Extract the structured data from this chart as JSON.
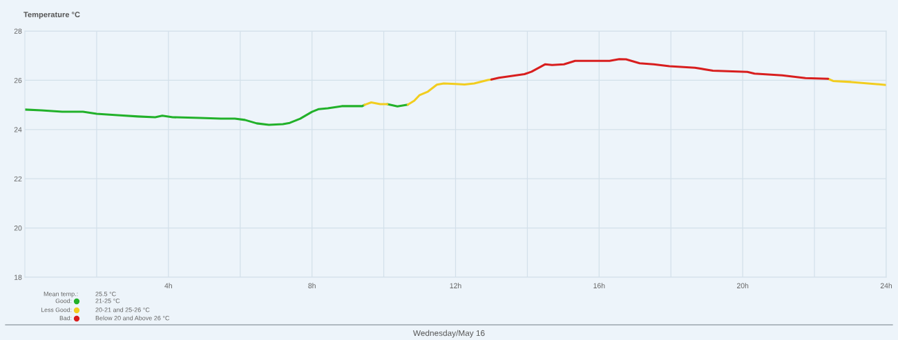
{
  "chart_data": {
    "type": "line",
    "title": "Temperature °C",
    "xlim": [
      0,
      24
    ],
    "ylim": [
      18,
      28
    ],
    "yticks": [
      18,
      20,
      22,
      24,
      26,
      28
    ],
    "xticks": [
      {
        "value": 2,
        "label": null
      },
      {
        "value": 4,
        "label": "4h"
      },
      {
        "value": 6,
        "label": null
      },
      {
        "value": 8,
        "label": "8h"
      },
      {
        "value": 10,
        "label": null
      },
      {
        "value": 12,
        "label": "12h"
      },
      {
        "value": 14,
        "label": null
      },
      {
        "value": 16,
        "label": "16h"
      },
      {
        "value": 18,
        "label": null
      },
      {
        "value": 20,
        "label": "20h"
      },
      {
        "value": 22,
        "label": null
      },
      {
        "value": 24,
        "label": "24h"
      }
    ],
    "grid": true,
    "legend": "bottom left",
    "marker": "none",
    "line_style": "solid",
    "annotations": [
      "Mean temp.:",
      "25.5 °C",
      "21-25 °C",
      "20-21 and 25-26 °C",
      "Below 20 and Above 26 °C",
      "Wednesday/May 16"
    ],
    "series": [
      {
        "name": "Good:",
        "color": "#22b12a",
        "x": [
          0,
          0.46,
          1.04,
          1.62,
          2.0,
          2.58,
          3.15,
          3.63,
          3.83,
          4.12,
          4.88,
          5.46,
          5.85,
          6.13,
          6.46,
          6.8,
          7.19,
          7.38,
          7.67,
          8.0,
          8.19,
          8.44,
          8.83,
          9.4,
          9.46,
          9.8,
          10.1,
          10.38,
          10.67
        ],
        "values": [
          24.81,
          24.78,
          24.72,
          24.72,
          24.64,
          24.58,
          24.53,
          24.5,
          24.56,
          24.5,
          24.47,
          24.44,
          24.44,
          24.39,
          24.25,
          24.19,
          24.22,
          24.27,
          24.44,
          24.72,
          24.83,
          24.86,
          24.95,
          24.95,
          25.0,
          null,
          25.03,
          24.94,
          25.01
        ]
      },
      {
        "name": "Less Good:",
        "color": "#f2cd1f",
        "x": [
          9.46,
          9.65,
          9.9,
          10.1,
          10.4,
          10.67,
          10.85,
          11.0,
          11.23,
          11.48,
          11.67,
          12.0,
          12.25,
          12.52,
          12.9,
          13.0,
          17.0,
          22.38,
          22.52,
          23.02,
          24.0
        ],
        "values": [
          25.0,
          25.1,
          25.03,
          25.03,
          null,
          25.01,
          25.17,
          25.4,
          25.54,
          25.82,
          25.87,
          25.85,
          25.83,
          25.87,
          26.01,
          26.03,
          null,
          26.06,
          25.97,
          25.93,
          25.81
        ]
      },
      {
        "name": "Bad:",
        "color": "#d81e1e",
        "x": [
          13.0,
          13.21,
          13.92,
          14.12,
          14.5,
          14.69,
          15.02,
          15.33,
          16.29,
          16.56,
          16.75,
          17.13,
          17.52,
          17.96,
          18.67,
          19.17,
          20.13,
          20.33,
          21.1,
          21.75,
          22.38
        ],
        "values": [
          26.03,
          26.1,
          26.25,
          26.35,
          26.65,
          26.62,
          26.65,
          26.79,
          26.79,
          26.86,
          26.85,
          26.69,
          26.65,
          26.57,
          26.51,
          26.39,
          26.34,
          26.27,
          26.2,
          26.09,
          26.06
        ]
      }
    ]
  }
}
